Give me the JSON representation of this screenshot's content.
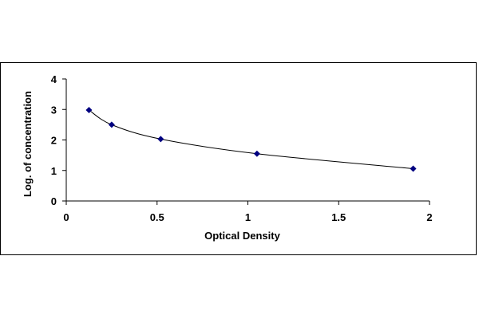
{
  "chart_data": {
    "type": "scatter",
    "title": "",
    "xlabel": "Optical Density",
    "ylabel": "Log. of concentration",
    "xlim": [
      0,
      2
    ],
    "ylim": [
      0,
      4
    ],
    "xticks": [
      "0",
      "0.5",
      "1",
      "1.5",
      "2"
    ],
    "xtick_values": [
      0,
      0.5,
      1,
      1.5,
      2
    ],
    "yticks": [
      "0",
      "1",
      "2",
      "3",
      "4"
    ],
    "ytick_values": [
      0,
      1,
      2,
      3,
      4
    ],
    "grid": false,
    "legend": "none",
    "trendline": "smooth curve",
    "series": [
      {
        "x": [
          0.125,
          0.25,
          0.52,
          1.05,
          1.91
        ],
        "y": [
          2.98,
          2.5,
          2.03,
          1.55,
          1.06
        ],
        "color": "#000080",
        "marker": "diamond"
      }
    ]
  }
}
